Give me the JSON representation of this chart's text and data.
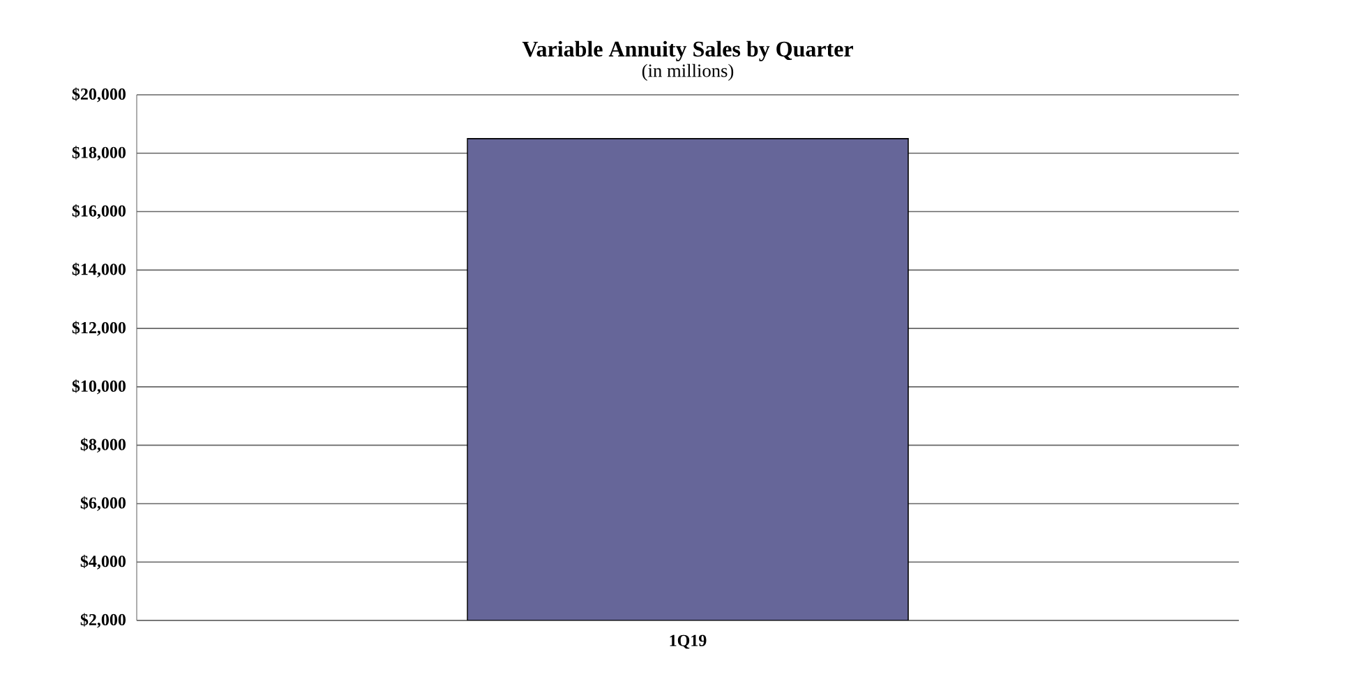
{
  "chart_data": {
    "type": "bar",
    "title": "Variable Annuity Sales by Quarter",
    "subtitle": "(in millions)",
    "categories": [
      "1Q19"
    ],
    "values": [
      18500
    ],
    "color": "#666699",
    "ylim": [
      2000,
      20000
    ],
    "yticks": [
      {
        "value": 2000,
        "label": "$2,000"
      },
      {
        "value": 4000,
        "label": "$4,000"
      },
      {
        "value": 6000,
        "label": "$6,000"
      },
      {
        "value": 8000,
        "label": "$8,000"
      },
      {
        "value": 10000,
        "label": "$10,000"
      },
      {
        "value": 12000,
        "label": "$12,000"
      },
      {
        "value": 14000,
        "label": "$14,000"
      },
      {
        "value": 16000,
        "label": "$16,000"
      },
      {
        "value": 18000,
        "label": "$18,000"
      },
      {
        "value": 20000,
        "label": "$20,000"
      }
    ],
    "grid": "y"
  }
}
